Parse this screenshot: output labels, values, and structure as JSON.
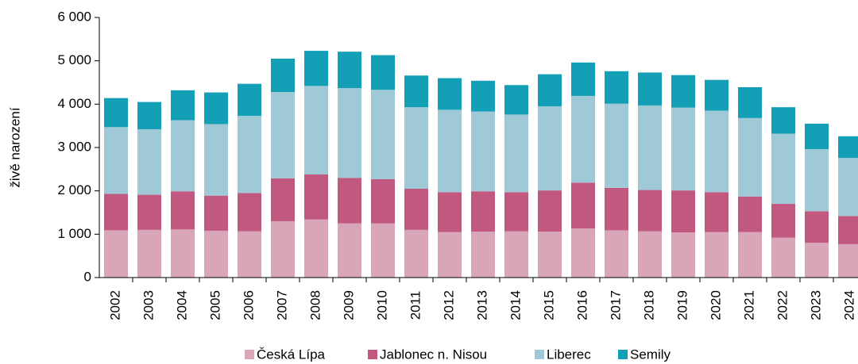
{
  "chart_data": {
    "type": "stacked-bar",
    "y_label": "živě narození",
    "categories": [
      "2002",
      "2003",
      "2004",
      "2005",
      "2006",
      "2007",
      "2008",
      "2009",
      "2010",
      "2011",
      "2012",
      "2013",
      "2014",
      "2015",
      "2016",
      "2017",
      "2018",
      "2019",
      "2020",
      "2021",
      "2022",
      "2023",
      "2024"
    ],
    "series": [
      {
        "name": "Česká Lípa",
        "color": "#d9a5b8",
        "values": [
          1090,
          1100,
          1110,
          1080,
          1070,
          1300,
          1340,
          1250,
          1250,
          1100,
          1050,
          1060,
          1070,
          1060,
          1130,
          1090,
          1070,
          1040,
          1050,
          1050,
          920,
          800,
          770
        ]
      },
      {
        "name": "Jablonec n. Nisou",
        "color": "#c0587f",
        "values": [
          840,
          810,
          880,
          810,
          880,
          990,
          1040,
          1050,
          1020,
          950,
          920,
          930,
          900,
          950,
          1060,
          980,
          950,
          970,
          920,
          820,
          780,
          730,
          650
        ]
      },
      {
        "name": "Liberec",
        "color": "#9fc9d6",
        "values": [
          1540,
          1510,
          1640,
          1650,
          1780,
          1990,
          2040,
          2070,
          2060,
          1880,
          1900,
          1840,
          1790,
          1940,
          2000,
          1940,
          1950,
          1910,
          1880,
          1810,
          1620,
          1430,
          1340
        ]
      },
      {
        "name": "Semily",
        "color": "#139fb5",
        "values": [
          670,
          630,
          690,
          730,
          740,
          770,
          810,
          840,
          800,
          730,
          730,
          710,
          680,
          740,
          770,
          750,
          760,
          750,
          710,
          710,
          610,
          590,
          500
        ]
      }
    ],
    "ylim": [
      0,
      6000
    ],
    "yticks": [
      0,
      {
        "value": 1000,
        "label": "1 000"
      },
      {
        "value": 2000,
        "label": "2 000"
      },
      {
        "value": 3000,
        "label": "3 000"
      },
      {
        "value": 4000,
        "label": "4 000"
      },
      {
        "value": 5000,
        "label": "5 000"
      },
      {
        "value": 6000,
        "label": "6 000"
      }
    ]
  }
}
